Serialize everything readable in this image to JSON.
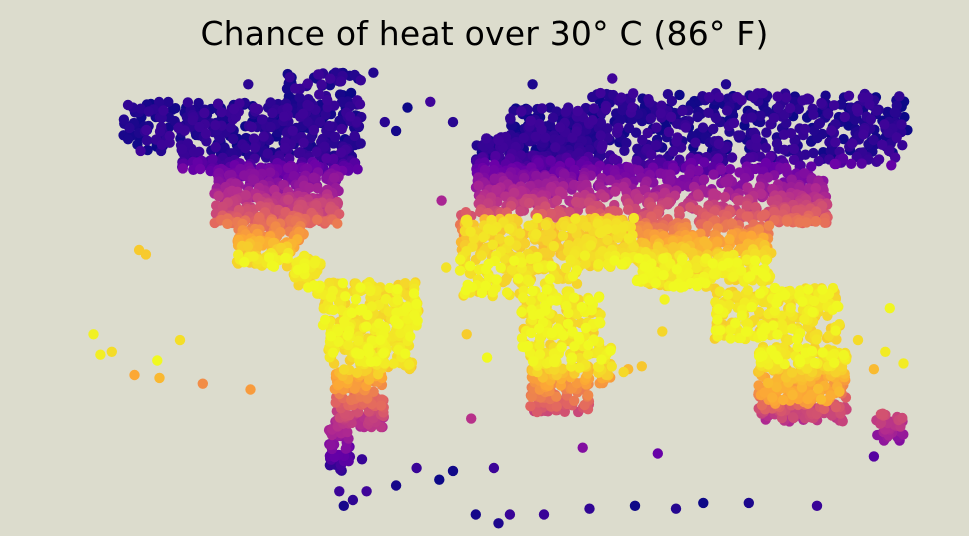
{
  "title": "Chance of heat over 30° C (86° F)",
  "colormap": {
    "name": "plasma",
    "stops": [
      "#0d0887",
      "#6a00a8",
      "#b12a90",
      "#e16462",
      "#fca636",
      "#f0f921"
    ]
  },
  "background_color": "#dcdccd",
  "chart_data": {
    "type": "scatter",
    "title": "Chance of heat over 30° C (86° F)",
    "projection": "equirectangular world map",
    "x": "longitude",
    "y": "latitude",
    "color_scale": "plasma (dark blue = low chance, yellow = high chance)",
    "legend": "none",
    "grid": false
  }
}
